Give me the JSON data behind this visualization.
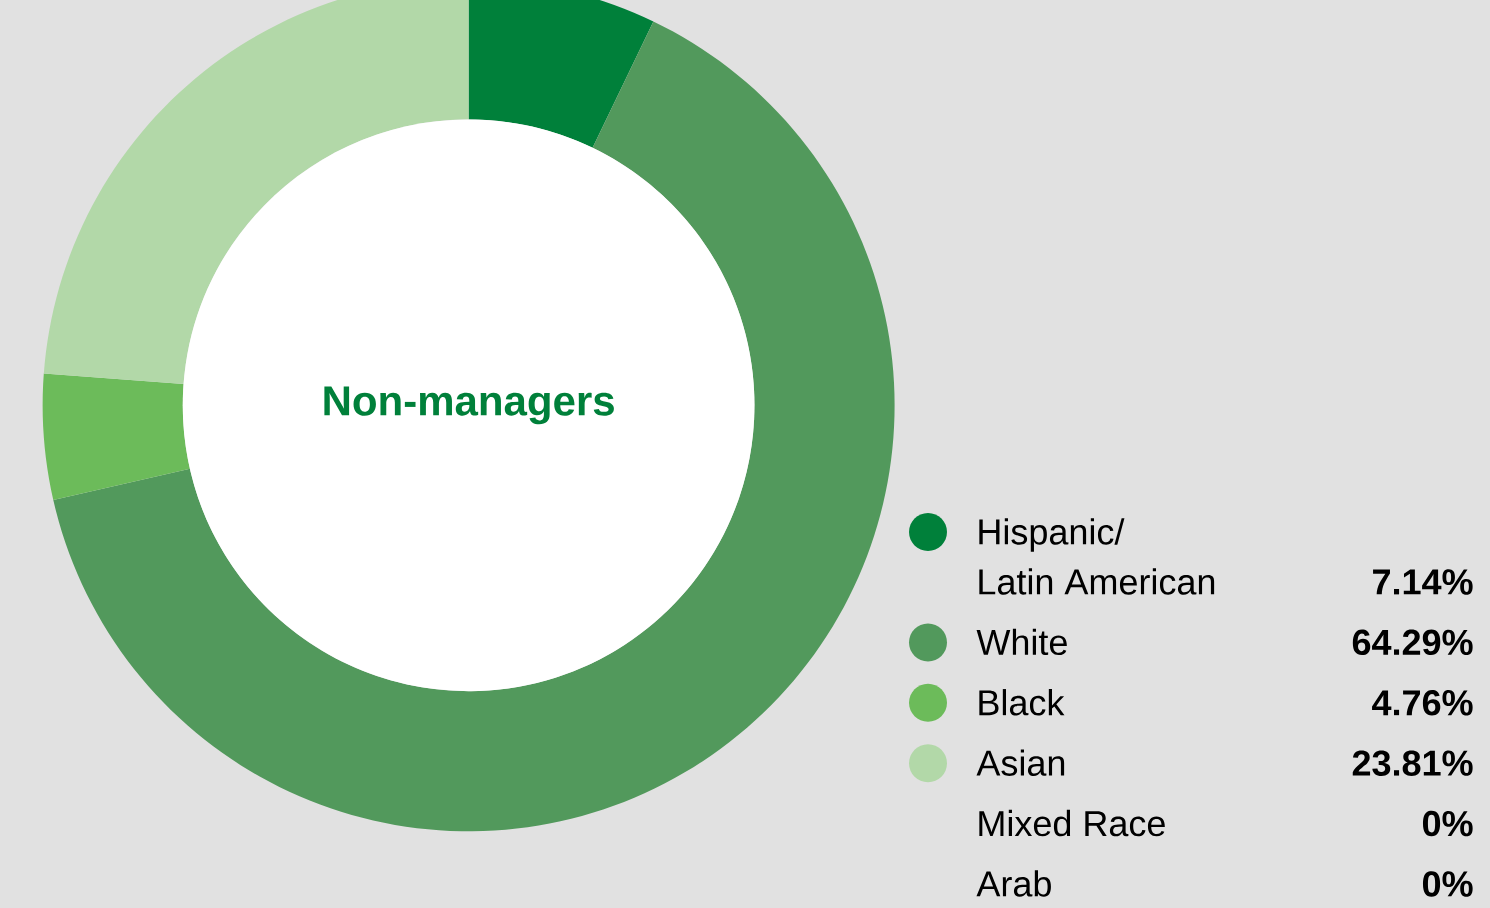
{
  "chart_data": {
    "type": "donut",
    "title": "Non-managers",
    "categories": [
      "Hispanic/ Latin American",
      "White",
      "Black",
      "Asian",
      "Mixed Race",
      "Arab"
    ],
    "values": [
      7.14,
      64.29,
      4.76,
      23.81,
      0,
      0
    ],
    "colors": [
      "#00803a",
      "#52995c",
      "#6cbb5a",
      "#b2d8a8",
      null,
      null
    ],
    "value_labels": [
      "7.14%",
      "64.29%",
      "4.76%",
      "23.81%",
      "0%",
      "0%"
    ],
    "legend": "bottom right"
  }
}
